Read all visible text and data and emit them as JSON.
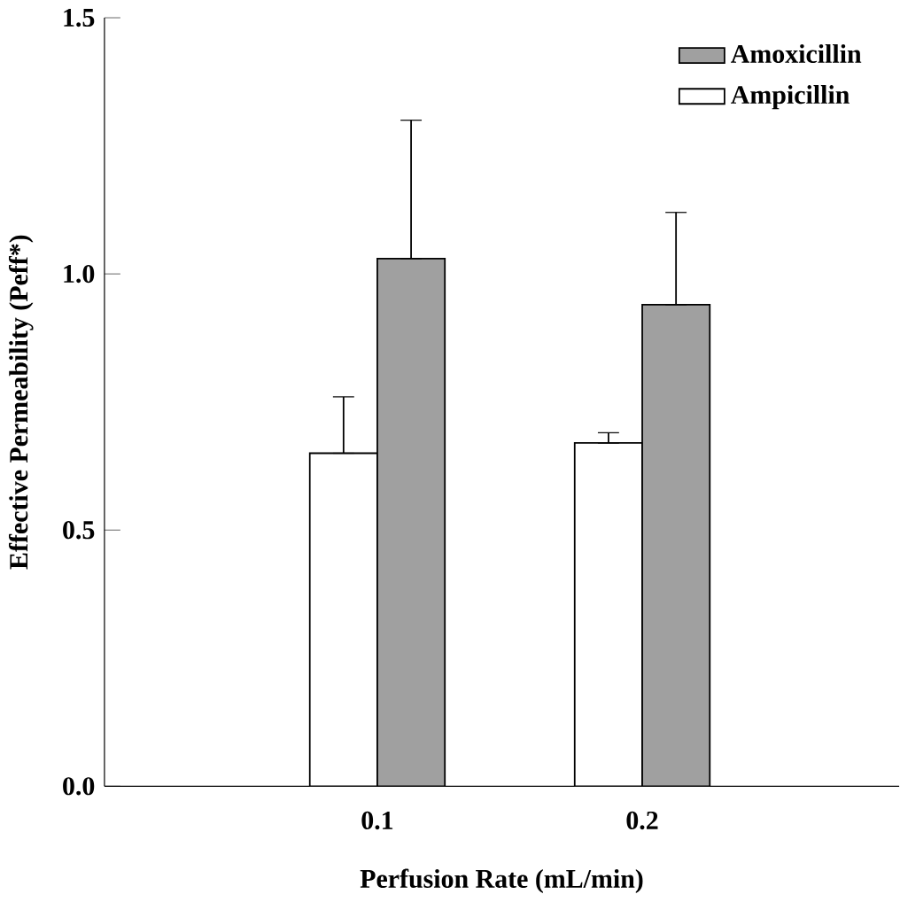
{
  "chart_data": {
    "type": "bar",
    "xlabel": "Perfusion Rate (mL/min)",
    "ylabel": "Effective Permeability (Peff*)",
    "categories": [
      "0.1",
      "0.2"
    ],
    "series": [
      {
        "name": "Ampicillin",
        "color": "#ffffff",
        "values": [
          0.65,
          0.67
        ],
        "errors": [
          [
            0.65,
            0.76
          ],
          [
            0.67,
            0.69
          ]
        ]
      },
      {
        "name": "Amoxicillin",
        "color": "#a0a0a0",
        "values": [
          1.03,
          0.94
        ],
        "errors": [
          [
            1.03,
            1.3
          ],
          [
            0.94,
            1.12
          ]
        ]
      }
    ],
    "ylim": [
      0,
      1.5
    ],
    "yticks": [
      {
        "value": 0,
        "label": "0.0"
      },
      {
        "value": 0.5,
        "label": "0.5"
      },
      {
        "value": 1,
        "label": "1.0"
      },
      {
        "value": 1.5,
        "label": "1.5"
      }
    ],
    "legend": "top right",
    "grid": false
  }
}
